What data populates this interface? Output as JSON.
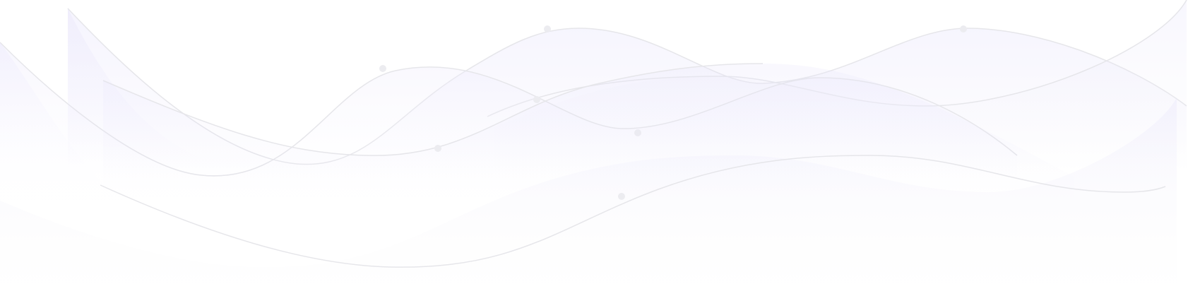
{
  "background": {
    "page_color": "#ffffff",
    "wave_fill_color": "#e7e4fb",
    "wave_line_color": "#e6e6ea",
    "dot_color": "#ececf0",
    "style": "decorative-waves"
  }
}
